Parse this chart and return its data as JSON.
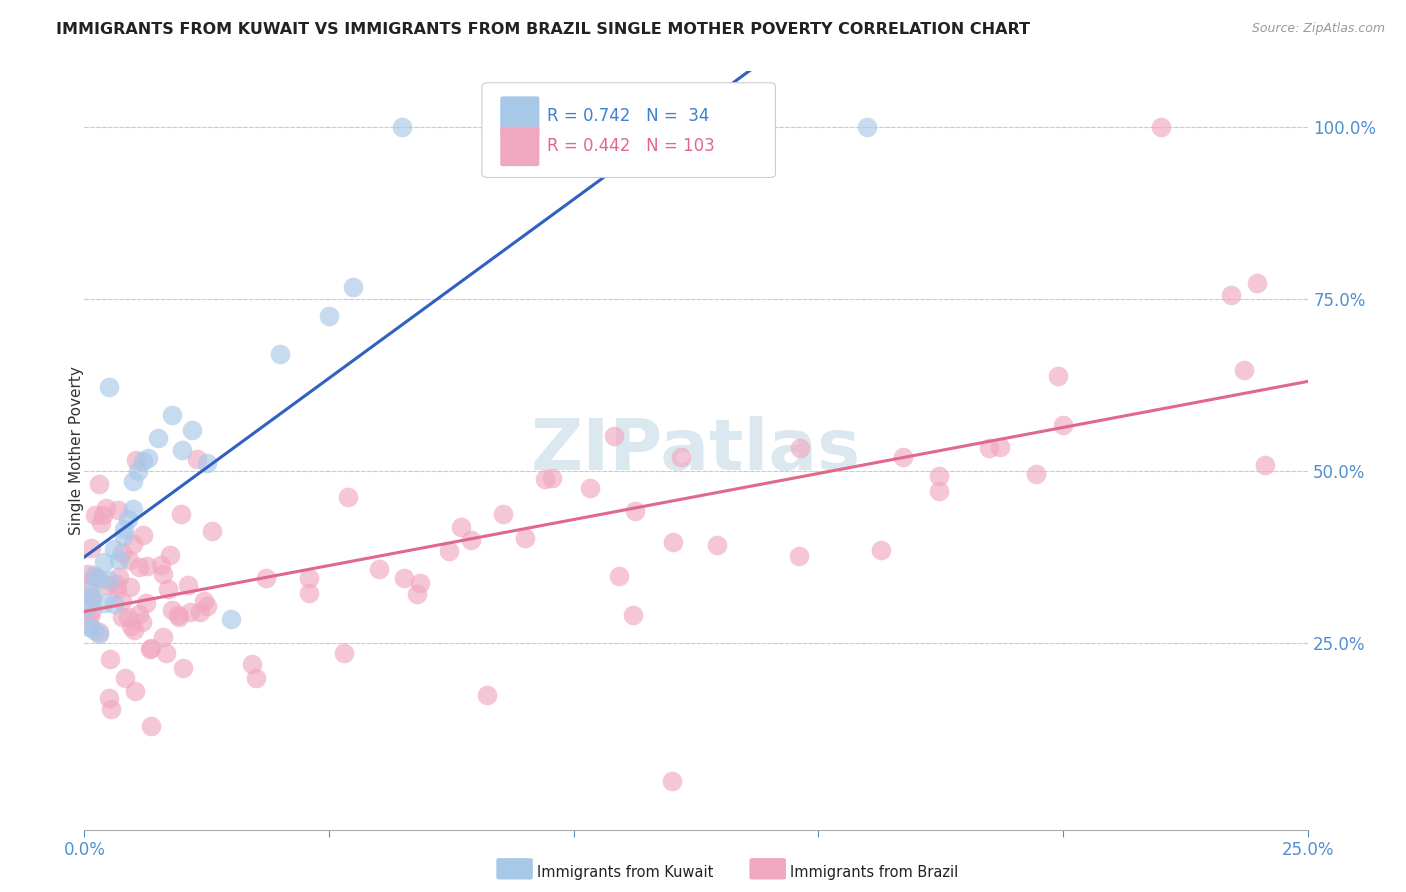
{
  "title": "IMMIGRANTS FROM KUWAIT VS IMMIGRANTS FROM BRAZIL SINGLE MOTHER POVERTY CORRELATION CHART",
  "source": "Source: ZipAtlas.com",
  "ylabel": "Single Mother Poverty",
  "xlim": [
    0.0,
    0.25
  ],
  "ylim": [
    -0.02,
    1.08
  ],
  "kuwait_R": 0.742,
  "kuwait_N": 34,
  "brazil_R": 0.442,
  "brazil_N": 103,
  "kuwait_color": "#a8c8e8",
  "brazil_color": "#f0a8c0",
  "kuwait_line_color": "#3060c0",
  "brazil_line_color": "#e06888",
  "watermark_color": "#dce8f0",
  "legend_kuwait_color": "#4080d0",
  "legend_brazil_color": "#e06888",
  "background_color": "#ffffff",
  "grid_color": "#cccccc",
  "tick_color": "#5090d0",
  "title_color": "#222222",
  "source_color": "#999999",
  "ylabel_color": "#333333"
}
